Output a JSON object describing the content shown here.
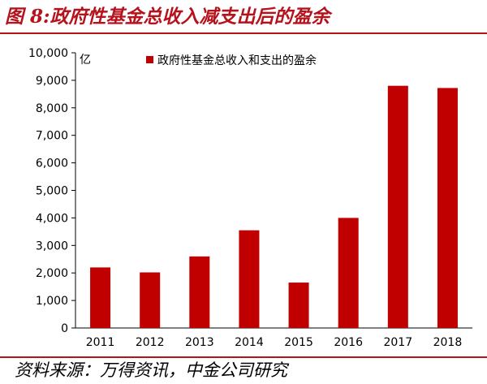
{
  "figure": {
    "title": "图 8:政府性基金总收入减支出后的盈余",
    "source": "资料来源：万得资讯，中金公司研究"
  },
  "colors": {
    "bar": "#c00000",
    "accent": "#b5121b"
  },
  "chart_data": {
    "type": "bar",
    "categories": [
      "2011",
      "2012",
      "2013",
      "2014",
      "2015",
      "2016",
      "2017",
      "2018"
    ],
    "series": [
      {
        "name": "政府性基金总收入和支出的盈余",
        "values": [
          2200,
          2020,
          2600,
          3550,
          1650,
          4000,
          8800,
          8720
        ]
      }
    ],
    "ylim": [
      0,
      10000
    ],
    "yticks": [
      0,
      1000,
      2000,
      3000,
      4000,
      5000,
      6000,
      7000,
      8000,
      9000,
      10000
    ],
    "ytick_labels": [
      "0",
      "1,000",
      "2,000",
      "3,000",
      "4,000",
      "5,000",
      "6,000",
      "7,000",
      "8,000",
      "9,000",
      "10,000"
    ],
    "yunit": "亿",
    "grid": false,
    "legend_position": "top-center"
  }
}
